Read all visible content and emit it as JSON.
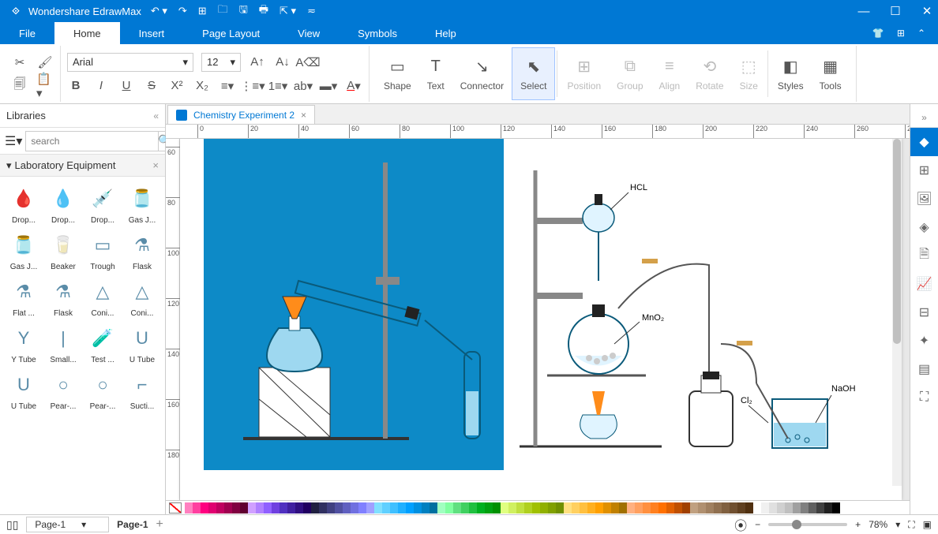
{
  "titlebar": {
    "app_name": "Wondershare EdrawMax",
    "qat_icons": [
      "undo-icon",
      "redo-icon",
      "new-icon",
      "open-icon",
      "save-icon",
      "print-icon",
      "export-icon",
      "more-icon"
    ],
    "window_controls": [
      "minimize-icon",
      "maximize-icon",
      "close-icon"
    ]
  },
  "menu": {
    "tabs": [
      "File",
      "Home",
      "Insert",
      "Page Layout",
      "View",
      "Symbols",
      "Help"
    ],
    "active_index": 1
  },
  "ribbon": {
    "font_name": "Arial",
    "font_size": "12",
    "clipboard": [
      "cut-icon",
      "format-painter-icon",
      "copy-icon",
      "paste-icon"
    ],
    "font_row1": [
      "increase-font-icon",
      "decrease-font-icon",
      "clear-format-icon"
    ],
    "font_row2": [
      "bold-icon",
      "italic-icon",
      "underline-icon",
      "strike-icon",
      "superscript-icon",
      "subscript-icon",
      "line-spacing-icon",
      "bullets-icon",
      "numbering-icon",
      "text-case-icon",
      "highlight-icon",
      "font-color-icon"
    ],
    "tools": [
      {
        "label": "Shape",
        "icon": "▭",
        "dim": false
      },
      {
        "label": "Text",
        "icon": "T",
        "dim": false
      },
      {
        "label": "Connector",
        "icon": "↘",
        "dim": false
      },
      {
        "label": "Select",
        "icon": "⬉",
        "dim": false,
        "active": true
      },
      {
        "label": "Position",
        "icon": "⊞",
        "dim": true
      },
      {
        "label": "Group",
        "icon": "⧉",
        "dim": true
      },
      {
        "label": "Align",
        "icon": "≡",
        "dim": true
      },
      {
        "label": "Rotate",
        "icon": "⟲",
        "dim": true
      },
      {
        "label": "Size",
        "icon": "⬚",
        "dim": true
      },
      {
        "label": "Styles",
        "icon": "◧",
        "dim": false
      },
      {
        "label": "Tools",
        "icon": "▦",
        "dim": false
      }
    ]
  },
  "libraries": {
    "title": "Libraries",
    "search_placeholder": "search",
    "category": "Laboratory Equipment",
    "items": [
      {
        "label": "Drop..."
      },
      {
        "label": "Drop..."
      },
      {
        "label": "Drop..."
      },
      {
        "label": "Gas J..."
      },
      {
        "label": "Gas J..."
      },
      {
        "label": "Beaker"
      },
      {
        "label": "Trough"
      },
      {
        "label": "Flask"
      },
      {
        "label": "Flat ..."
      },
      {
        "label": "Flask"
      },
      {
        "label": "Coni..."
      },
      {
        "label": "Coni..."
      },
      {
        "label": "Y Tube"
      },
      {
        "label": "Small..."
      },
      {
        "label": "Test ..."
      },
      {
        "label": "U Tube"
      },
      {
        "label": "U Tube"
      },
      {
        "label": "Pear-..."
      },
      {
        "label": "Pear-..."
      },
      {
        "label": "Sucti..."
      }
    ]
  },
  "document": {
    "tab_name": "Chemistry Experiment 2",
    "ruler_h": [
      0,
      20,
      40,
      60,
      80,
      100,
      120,
      140,
      160,
      180,
      200,
      220,
      240,
      260,
      280
    ],
    "ruler_v": [
      60,
      80,
      100,
      120,
      140,
      160,
      180
    ],
    "labels": {
      "hcl": "HCL",
      "mno2": "MnO₂",
      "cl2": "Cl₂",
      "naoh": "NaOH"
    },
    "bg_left": "#0d8ac7",
    "bg_right": "#ffffff"
  },
  "color_palette": [
    "#ff80c0",
    "#ff40a0",
    "#ff0080",
    "#e00070",
    "#c00060",
    "#a00050",
    "#800040",
    "#600030",
    "#d0a0ff",
    "#b080ff",
    "#9060ff",
    "#7040e0",
    "#5030c0",
    "#4020a0",
    "#301080",
    "#200060",
    "#202040",
    "#303060",
    "#404080",
    "#5050a0",
    "#6060c0",
    "#7070e0",
    "#8080ff",
    "#a0a0ff",
    "#80e0ff",
    "#60d0ff",
    "#40c0ff",
    "#20b0ff",
    "#00a0ff",
    "#0090e0",
    "#0080c0",
    "#0070a0",
    "#a0ffc0",
    "#80ffa0",
    "#60e080",
    "#40d060",
    "#20c040",
    "#00b020",
    "#00a010",
    "#009000",
    "#e0ff80",
    "#d0f060",
    "#c0e040",
    "#b0d020",
    "#a0c000",
    "#90b000",
    "#80a000",
    "#709000",
    "#ffe080",
    "#ffd060",
    "#ffc040",
    "#ffb020",
    "#ffa000",
    "#e09000",
    "#c08000",
    "#a07000",
    "#ffb080",
    "#ffa060",
    "#ff9040",
    "#ff8020",
    "#ff7000",
    "#e06000",
    "#c05000",
    "#a04000",
    "#c0a080",
    "#b09070",
    "#a08060",
    "#907050",
    "#806040",
    "#705030",
    "#604020",
    "#503010",
    "#ffffff",
    "#f0f0f0",
    "#e0e0e0",
    "#d0d0d0",
    "#c0c0c0",
    "#a0a0a0",
    "#808080",
    "#606060",
    "#404040",
    "#202020",
    "#000000"
  ],
  "right_tools": [
    "diamond-icon",
    "grid-icon",
    "image-icon",
    "layers-icon",
    "page-icon",
    "chart-icon",
    "table-icon",
    "clipart-icon",
    "layout-icon",
    "fullscreen-icon"
  ],
  "status": {
    "page_selector": "Page-1",
    "page_label": "Page-1",
    "zoom": "78%"
  }
}
